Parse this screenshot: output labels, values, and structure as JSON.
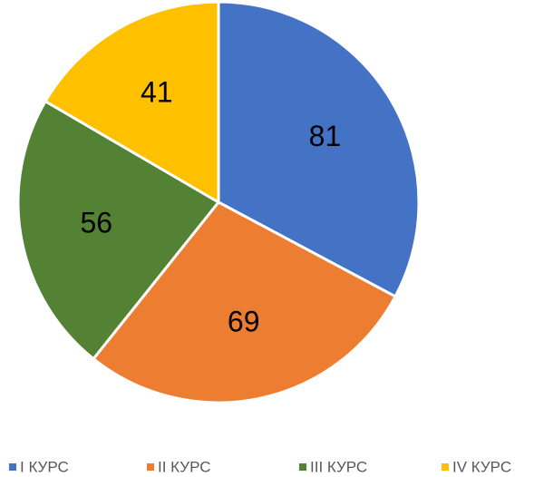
{
  "chart_data": {
    "type": "pie",
    "categories": [
      "I КУРС",
      "II КУРС",
      "III КУРС",
      "IV КУРС"
    ],
    "values": [
      81,
      69,
      56,
      41
    ],
    "colors": [
      "#4472c4",
      "#ed7d31",
      "#548235",
      "#ffc000"
    ],
    "legend": "bottom"
  }
}
